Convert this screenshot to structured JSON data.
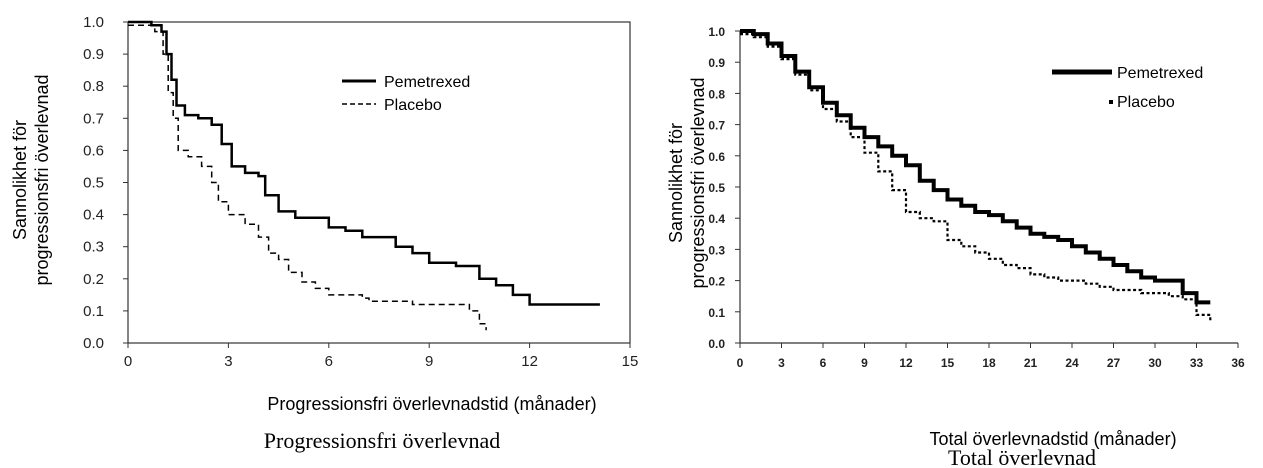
{
  "chart_data": [
    {
      "type": "line",
      "step": true,
      "xlabel": "Progressionsfri överlevnadstid (månader)",
      "ylabel_lines": [
        "Sannolikhet för",
        "progressionsfri överlevnad"
      ],
      "caption": "Progressionsfri överlevnad",
      "xlim": [
        0,
        15
      ],
      "ylim": [
        0,
        1
      ],
      "x_ticks": [
        0,
        3,
        6,
        9,
        12,
        15
      ],
      "x_tick_labels": [
        "0",
        "3",
        "6",
        "9",
        "12",
        "15"
      ],
      "y_ticks": [
        0,
        0.1,
        0.2,
        0.3,
        0.4,
        0.5,
        0.6,
        0.7,
        0.8,
        0.9,
        1.0
      ],
      "y_tick_labels": [
        "0.0",
        "0.1",
        "0.2",
        "0.3",
        "0.4",
        "0.5",
        "0.6",
        "0.7",
        "0.8",
        "0.9",
        "1.0"
      ],
      "legend_position": "top-right",
      "series": [
        {
          "name": "Pemetrexed",
          "style": "solid",
          "points": [
            [
              0,
              1.0
            ],
            [
              0.7,
              0.99
            ],
            [
              1.0,
              0.97
            ],
            [
              1.15,
              0.9
            ],
            [
              1.3,
              0.82
            ],
            [
              1.45,
              0.74
            ],
            [
              1.7,
              0.71
            ],
            [
              2.1,
              0.7
            ],
            [
              2.5,
              0.68
            ],
            [
              2.8,
              0.62
            ],
            [
              3.1,
              0.55
            ],
            [
              3.5,
              0.53
            ],
            [
              3.9,
              0.52
            ],
            [
              4.1,
              0.46
            ],
            [
              4.5,
              0.41
            ],
            [
              5.0,
              0.39
            ],
            [
              6.0,
              0.36
            ],
            [
              6.5,
              0.35
            ],
            [
              7.0,
              0.33
            ],
            [
              8.0,
              0.3
            ],
            [
              8.5,
              0.28
            ],
            [
              9.0,
              0.25
            ],
            [
              9.8,
              0.24
            ],
            [
              10.5,
              0.2
            ],
            [
              11.0,
              0.18
            ],
            [
              11.5,
              0.15
            ],
            [
              12.0,
              0.12
            ],
            [
              14.1,
              0.12
            ]
          ]
        },
        {
          "name": "Placebo",
          "style": "dashed",
          "points": [
            [
              0,
              0.99
            ],
            [
              0.8,
              0.97
            ],
            [
              1.05,
              0.9
            ],
            [
              1.2,
              0.78
            ],
            [
              1.35,
              0.7
            ],
            [
              1.5,
              0.6
            ],
            [
              1.8,
              0.58
            ],
            [
              2.2,
              0.55
            ],
            [
              2.5,
              0.5
            ],
            [
              2.7,
              0.44
            ],
            [
              3.0,
              0.4
            ],
            [
              3.5,
              0.37
            ],
            [
              3.9,
              0.33
            ],
            [
              4.2,
              0.28
            ],
            [
              4.5,
              0.26
            ],
            [
              4.8,
              0.22
            ],
            [
              5.2,
              0.19
            ],
            [
              5.6,
              0.17
            ],
            [
              6.0,
              0.15
            ],
            [
              7.0,
              0.14
            ],
            [
              7.2,
              0.13
            ],
            [
              8.5,
              0.12
            ],
            [
              9.5,
              0.12
            ],
            [
              10.2,
              0.1
            ],
            [
              10.5,
              0.06
            ],
            [
              10.7,
              0.04
            ]
          ]
        }
      ]
    },
    {
      "type": "line",
      "step": true,
      "xlabel": "Total överlevnadstid (månader)",
      "ylabel_lines": [
        "Sannolikhet för",
        "progressionsfri överlevnad"
      ],
      "caption": "Total överlevnad",
      "xlim": [
        0,
        36
      ],
      "ylim": [
        0,
        1
      ],
      "x_ticks": [
        0,
        3,
        6,
        9,
        12,
        15,
        18,
        21,
        24,
        27,
        30,
        33,
        36
      ],
      "x_tick_labels": [
        "0",
        "3",
        "6",
        "9",
        "12",
        "15",
        "18",
        "21",
        "24",
        "27",
        "30",
        "33",
        "36"
      ],
      "y_ticks": [
        0,
        0.1,
        0.2,
        0.3,
        0.4,
        0.5,
        0.6,
        0.7,
        0.8,
        0.9,
        1.0
      ],
      "y_tick_labels": [
        "0.0",
        "0.1",
        "0.2",
        "0.3",
        "0.4",
        "0.5",
        "0.6",
        "0.7",
        "0.8",
        "0.9",
        "1.0"
      ],
      "legend_position": "top-right",
      "series": [
        {
          "name": "Pemetrexed",
          "style": "solid",
          "points": [
            [
              0,
              1.0
            ],
            [
              1,
              0.99
            ],
            [
              2,
              0.96
            ],
            [
              3,
              0.92
            ],
            [
              4,
              0.87
            ],
            [
              5,
              0.82
            ],
            [
              6,
              0.77
            ],
            [
              7,
              0.73
            ],
            [
              8,
              0.69
            ],
            [
              9,
              0.66
            ],
            [
              10,
              0.63
            ],
            [
              11,
              0.6
            ],
            [
              12,
              0.57
            ],
            [
              13,
              0.52
            ],
            [
              14,
              0.49
            ],
            [
              15,
              0.46
            ],
            [
              16,
              0.44
            ],
            [
              17,
              0.42
            ],
            [
              18,
              0.41
            ],
            [
              19,
              0.39
            ],
            [
              20,
              0.37
            ],
            [
              21,
              0.35
            ],
            [
              22,
              0.34
            ],
            [
              23,
              0.33
            ],
            [
              24,
              0.31
            ],
            [
              25,
              0.29
            ],
            [
              26,
              0.27
            ],
            [
              27,
              0.25
            ],
            [
              28,
              0.23
            ],
            [
              29,
              0.21
            ],
            [
              30,
              0.2
            ],
            [
              31,
              0.2
            ],
            [
              32,
              0.16
            ],
            [
              33,
              0.13
            ],
            [
              34,
              0.13
            ]
          ]
        },
        {
          "name": "Placebo",
          "style": "dashed",
          "points": [
            [
              0,
              0.99
            ],
            [
              1,
              0.98
            ],
            [
              2,
              0.95
            ],
            [
              3,
              0.91
            ],
            [
              4,
              0.86
            ],
            [
              5,
              0.81
            ],
            [
              6,
              0.75
            ],
            [
              7,
              0.71
            ],
            [
              8,
              0.66
            ],
            [
              9,
              0.61
            ],
            [
              10,
              0.55
            ],
            [
              11,
              0.49
            ],
            [
              12,
              0.42
            ],
            [
              13,
              0.4
            ],
            [
              14,
              0.39
            ],
            [
              15,
              0.33
            ],
            [
              16,
              0.31
            ],
            [
              17,
              0.29
            ],
            [
              18,
              0.27
            ],
            [
              19,
              0.25
            ],
            [
              20,
              0.24
            ],
            [
              21,
              0.22
            ],
            [
              22,
              0.21
            ],
            [
              23,
              0.2
            ],
            [
              24,
              0.2
            ],
            [
              25,
              0.19
            ],
            [
              26,
              0.18
            ],
            [
              27,
              0.17
            ],
            [
              29,
              0.16
            ],
            [
              31,
              0.15
            ],
            [
              32,
              0.14
            ],
            [
              33,
              0.09
            ],
            [
              34,
              0.07
            ]
          ]
        }
      ]
    }
  ]
}
